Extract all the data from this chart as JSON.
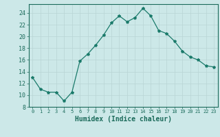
{
  "x": [
    0,
    1,
    2,
    3,
    4,
    5,
    6,
    7,
    8,
    9,
    10,
    11,
    12,
    13,
    14,
    15,
    16,
    17,
    18,
    19,
    20,
    21,
    22,
    23
  ],
  "y": [
    13,
    11,
    10.5,
    10.5,
    9,
    10.5,
    15.8,
    17,
    18.5,
    20.2,
    22.3,
    23.5,
    22.5,
    23.2,
    24.8,
    23.5,
    21,
    20.5,
    19.2,
    17.5,
    16.5,
    16,
    15,
    14.8
  ],
  "line_color": "#1a7a6a",
  "marker": "*",
  "marker_size": 3,
  "bg_color": "#cce8e8",
  "grid_major_color": "#b8d4d4",
  "grid_minor_color": "#c8e0e0",
  "xlabel": "Humidex (Indice chaleur)",
  "xlim": [
    -0.5,
    23.5
  ],
  "ylim": [
    8,
    25.5
  ],
  "yticks": [
    8,
    10,
    12,
    14,
    16,
    18,
    20,
    22,
    24
  ],
  "xticks": [
    0,
    1,
    2,
    3,
    4,
    5,
    6,
    7,
    8,
    9,
    10,
    11,
    12,
    13,
    14,
    15,
    16,
    17,
    18,
    19,
    20,
    21,
    22,
    23
  ],
  "tick_color": "#1a6a5a",
  "label_color": "#1a6a5a",
  "spine_color": "#1a6a5a"
}
